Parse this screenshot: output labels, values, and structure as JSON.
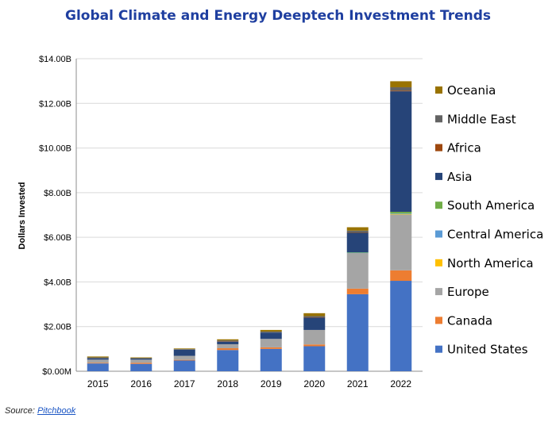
{
  "chart_data": {
    "type": "bar",
    "stacked": true,
    "title": "Global Climate and Energy Deeptech Investment Trends",
    "xlabel": "",
    "ylabel": "Dollars Invested",
    "ylim": [
      0,
      14
    ],
    "y_ticks": [
      0,
      2,
      4,
      6,
      8,
      10,
      12,
      14
    ],
    "y_tick_labels": [
      "$0.00M",
      "$2.00B",
      "$4.00B",
      "$6.00B",
      "$8.00B",
      "$10.00B",
      "$12.00B",
      "$14.00B"
    ],
    "grid": "horizontal",
    "legend_position": "right",
    "categories": [
      "2015",
      "2016",
      "2017",
      "2018",
      "2019",
      "2020",
      "2021",
      "2022"
    ],
    "series": [
      {
        "name": "United States",
        "color": "#4472c4",
        "values": [
          0.35,
          0.33,
          0.48,
          0.95,
          1.0,
          1.12,
          3.45,
          4.05
        ]
      },
      {
        "name": "Canada",
        "color": "#ed7d31",
        "values": [
          0.03,
          0.05,
          0.03,
          0.08,
          0.07,
          0.08,
          0.25,
          0.47
        ]
      },
      {
        "name": "Europe",
        "color": "#a5a5a5",
        "values": [
          0.14,
          0.14,
          0.18,
          0.18,
          0.38,
          0.65,
          1.6,
          2.5
        ]
      },
      {
        "name": "North America",
        "color": "#ffc000",
        "values": [
          0.0,
          0.0,
          0.0,
          0.0,
          0.0,
          0.0,
          0.0,
          0.02
        ]
      },
      {
        "name": "Central America",
        "color": "#5b9bd5",
        "values": [
          0.0,
          0.0,
          0.0,
          0.0,
          0.0,
          0.0,
          0.01,
          0.02
        ]
      },
      {
        "name": "South America",
        "color": "#70ad47",
        "values": [
          0.0,
          0.0,
          0.0,
          0.0,
          0.0,
          0.0,
          0.02,
          0.08
        ]
      },
      {
        "name": "Asia",
        "color": "#264478",
        "values": [
          0.06,
          0.05,
          0.28,
          0.12,
          0.28,
          0.56,
          0.88,
          5.4
        ]
      },
      {
        "name": "Africa",
        "color": "#9e480e",
        "values": [
          0.0,
          0.0,
          0.0,
          0.01,
          0.0,
          0.01,
          0.01,
          0.03
        ]
      },
      {
        "name": "Middle East",
        "color": "#636363",
        "values": [
          0.04,
          0.02,
          0.02,
          0.04,
          0.05,
          0.05,
          0.08,
          0.15
        ]
      },
      {
        "name": "Oceania",
        "color": "#997300",
        "values": [
          0.04,
          0.03,
          0.03,
          0.05,
          0.07,
          0.13,
          0.15,
          0.27
        ]
      }
    ],
    "legend_order": [
      "Oceania",
      "Middle East",
      "Africa",
      "Asia",
      "South America",
      "Central America",
      "North America",
      "Europe",
      "Canada",
      "United States"
    ]
  },
  "source": {
    "label": "Source: ",
    "link_text": "Pitchbook"
  }
}
